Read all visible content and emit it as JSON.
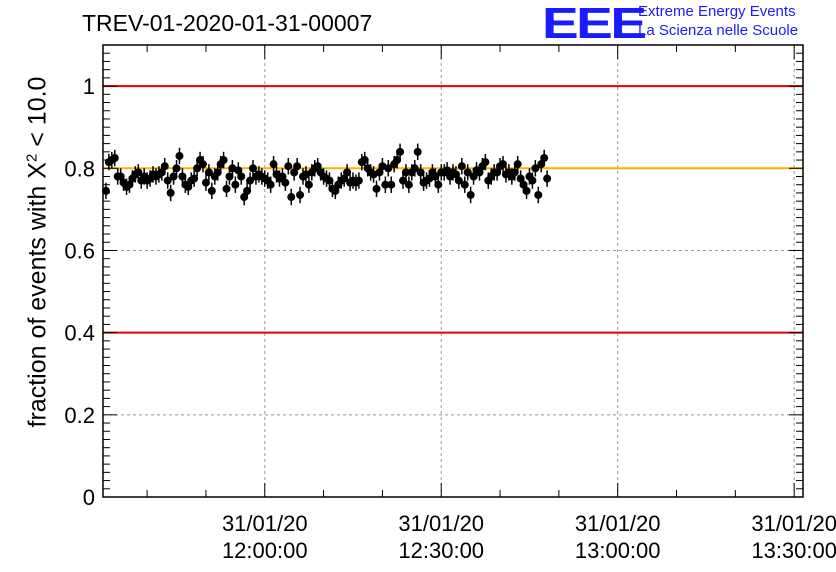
{
  "page_title": "TREV-01-2020-01-31-00007",
  "logo": {
    "mark": "EEE",
    "line1": "Extreme Energy Events",
    "line2": "La Scienza nelle Scuole",
    "color": "#1b1bff"
  },
  "chart_data": {
    "type": "scatter",
    "title": "TREV-01-2020-01-31-00007",
    "ylabel": {
      "prefix": "fraction of events with ",
      "chi": "X",
      "sup": "2",
      "suffix": " < 10.0"
    },
    "xlabel": "",
    "ylim": [
      0,
      1.1
    ],
    "xlim": [
      "2020-01-31 11:32:30",
      "2020-01-31 13:31:30"
    ],
    "yticks": [
      "0",
      "0.2",
      "0.4",
      "0.6",
      "0.8",
      "1"
    ],
    "xticks": [
      {
        "date": "31/01/20",
        "time": "12:00:00",
        "t": "2020-01-31 12:00:00"
      },
      {
        "date": "31/01/20",
        "time": "12:30:00",
        "t": "2020-01-31 12:30:00"
      },
      {
        "date": "31/01/20",
        "time": "13:00:00",
        "t": "2020-01-31 13:00:00"
      },
      {
        "date": "31/01/20",
        "time": "13:30:00",
        "t": "2020-01-31 13:30:00"
      }
    ],
    "grid": true,
    "reference_lines": [
      {
        "y": 1.0,
        "color": "#e00000"
      },
      {
        "y": 0.4,
        "color": "#e00000"
      },
      {
        "y": 0.8,
        "color": "#ffb000"
      }
    ],
    "series": [
      {
        "marker_color": "#000000",
        "error": 0.02,
        "x_start": "2020-01-31 11:33:00",
        "x_step_seconds": 30,
        "values": [
          0.745,
          0.815,
          0.82,
          0.825,
          0.78,
          0.78,
          0.765,
          0.755,
          0.76,
          0.775,
          0.785,
          0.79,
          0.77,
          0.78,
          0.77,
          0.775,
          0.785,
          0.78,
          0.785,
          0.79,
          0.805,
          0.77,
          0.74,
          0.78,
          0.8,
          0.83,
          0.78,
          0.76,
          0.755,
          0.77,
          0.775,
          0.8,
          0.82,
          0.81,
          0.765,
          0.79,
          0.745,
          0.78,
          0.79,
          0.81,
          0.82,
          0.75,
          0.78,
          0.8,
          0.76,
          0.795,
          0.78,
          0.73,
          0.745,
          0.77,
          0.8,
          0.78,
          0.785,
          0.78,
          0.775,
          0.77,
          0.76,
          0.81,
          0.785,
          0.775,
          0.78,
          0.765,
          0.805,
          0.73,
          0.79,
          0.805,
          0.735,
          0.78,
          0.785,
          0.76,
          0.79,
          0.8,
          0.805,
          0.79,
          0.78,
          0.775,
          0.77,
          0.75,
          0.745,
          0.76,
          0.77,
          0.775,
          0.79,
          0.765,
          0.77,
          0.765,
          0.77,
          0.815,
          0.82,
          0.8,
          0.79,
          0.785,
          0.75,
          0.79,
          0.805,
          0.76,
          0.8,
          0.76,
          0.81,
          0.82,
          0.84,
          0.77,
          0.79,
          0.76,
          0.79,
          0.8,
          0.84,
          0.79,
          0.765,
          0.77,
          0.775,
          0.79,
          0.78,
          0.76,
          0.79,
          0.79,
          0.795,
          0.78,
          0.79,
          0.785,
          0.77,
          0.805,
          0.76,
          0.79,
          0.735,
          0.78,
          0.795,
          0.79,
          0.805,
          0.815,
          0.77,
          0.78,
          0.79,
          0.79,
          0.805,
          0.81,
          0.785,
          0.79,
          0.78,
          0.79,
          0.81,
          0.775,
          0.76,
          0.745,
          0.78,
          0.77,
          0.8,
          0.735,
          0.81,
          0.825,
          0.775
        ]
      }
    ]
  }
}
